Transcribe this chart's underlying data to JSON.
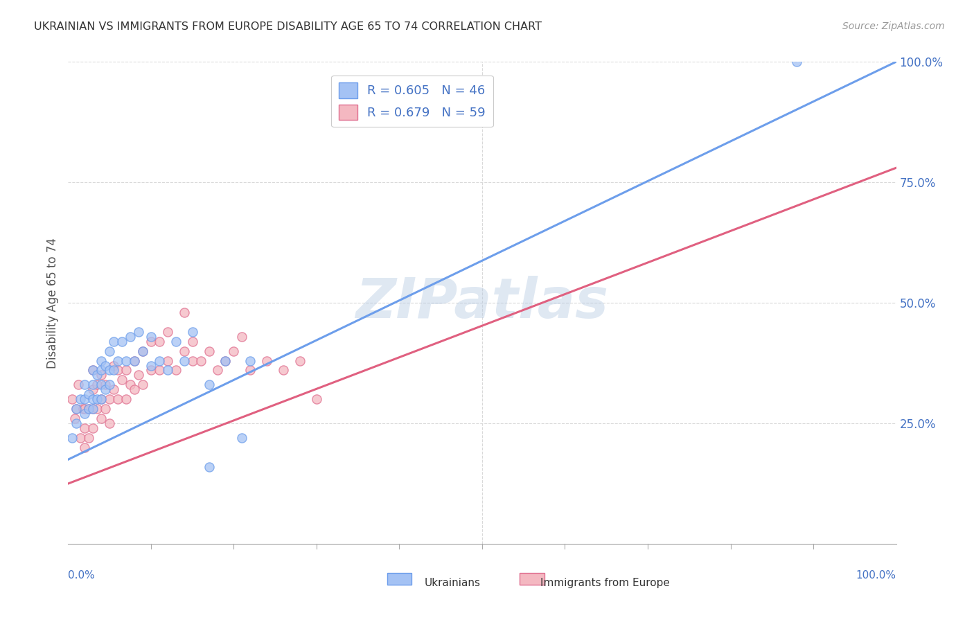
{
  "title": "UKRAINIAN VS IMMIGRANTS FROM EUROPE DISABILITY AGE 65 TO 74 CORRELATION CHART",
  "source": "Source: ZipAtlas.com",
  "ylabel": "Disability Age 65 to 74",
  "xmin": 0.0,
  "xmax": 1.0,
  "ymin": 0.0,
  "ymax": 1.0,
  "watermark": "ZIPatlas",
  "legend_blue_r": "R = 0.605",
  "legend_blue_n": "N = 46",
  "legend_pink_r": "R = 0.679",
  "legend_pink_n": "N = 59",
  "blue_color": "#a4c2f4",
  "pink_color": "#f4b8c1",
  "blue_edge_color": "#6d9eeb",
  "pink_edge_color": "#e07090",
  "blue_line_color": "#6d9eeb",
  "pink_line_color": "#e06080",
  "title_color": "#333333",
  "axis_label_color": "#555555",
  "tick_color": "#4472c4",
  "source_color": "#999999",
  "grid_color": "#d9d9d9",
  "blue_scatter_x": [
    0.005,
    0.01,
    0.01,
    0.015,
    0.02,
    0.02,
    0.02,
    0.025,
    0.025,
    0.03,
    0.03,
    0.03,
    0.03,
    0.035,
    0.035,
    0.04,
    0.04,
    0.04,
    0.04,
    0.045,
    0.045,
    0.05,
    0.05,
    0.05,
    0.055,
    0.055,
    0.06,
    0.065,
    0.07,
    0.075,
    0.08,
    0.085,
    0.09,
    0.1,
    0.1,
    0.11,
    0.12,
    0.13,
    0.14,
    0.15,
    0.17,
    0.19,
    0.22,
    0.17,
    0.21,
    0.88
  ],
  "blue_scatter_y": [
    0.22,
    0.25,
    0.28,
    0.3,
    0.27,
    0.3,
    0.33,
    0.28,
    0.31,
    0.28,
    0.3,
    0.33,
    0.36,
    0.3,
    0.35,
    0.3,
    0.33,
    0.36,
    0.38,
    0.32,
    0.37,
    0.33,
    0.36,
    0.4,
    0.36,
    0.42,
    0.38,
    0.42,
    0.38,
    0.43,
    0.38,
    0.44,
    0.4,
    0.37,
    0.43,
    0.38,
    0.36,
    0.42,
    0.38,
    0.44,
    0.33,
    0.38,
    0.38,
    0.16,
    0.22,
    1.0
  ],
  "pink_scatter_x": [
    0.005,
    0.008,
    0.01,
    0.012,
    0.015,
    0.018,
    0.02,
    0.02,
    0.02,
    0.025,
    0.025,
    0.03,
    0.03,
    0.03,
    0.03,
    0.035,
    0.035,
    0.04,
    0.04,
    0.04,
    0.045,
    0.045,
    0.05,
    0.05,
    0.055,
    0.055,
    0.06,
    0.06,
    0.065,
    0.07,
    0.07,
    0.075,
    0.08,
    0.08,
    0.085,
    0.09,
    0.09,
    0.1,
    0.1,
    0.11,
    0.11,
    0.12,
    0.12,
    0.13,
    0.14,
    0.14,
    0.15,
    0.15,
    0.16,
    0.17,
    0.18,
    0.19,
    0.2,
    0.21,
    0.22,
    0.24,
    0.26,
    0.28,
    0.3
  ],
  "pink_scatter_y": [
    0.3,
    0.26,
    0.28,
    0.33,
    0.22,
    0.28,
    0.2,
    0.24,
    0.28,
    0.22,
    0.28,
    0.24,
    0.28,
    0.32,
    0.36,
    0.28,
    0.33,
    0.26,
    0.3,
    0.35,
    0.28,
    0.33,
    0.25,
    0.3,
    0.32,
    0.37,
    0.3,
    0.36,
    0.34,
    0.3,
    0.36,
    0.33,
    0.32,
    0.38,
    0.35,
    0.33,
    0.4,
    0.36,
    0.42,
    0.36,
    0.42,
    0.38,
    0.44,
    0.36,
    0.4,
    0.48,
    0.38,
    0.42,
    0.38,
    0.4,
    0.36,
    0.38,
    0.4,
    0.43,
    0.36,
    0.38,
    0.36,
    0.38,
    0.3
  ],
  "blue_line_x": [
    0.0,
    1.0
  ],
  "blue_line_y": [
    0.175,
    1.0
  ],
  "pink_line_x": [
    0.0,
    1.0
  ],
  "pink_line_y": [
    0.125,
    0.78
  ],
  "ytick_labels": [
    "25.0%",
    "50.0%",
    "75.0%",
    "100.0%"
  ],
  "ytick_positions": [
    0.25,
    0.5,
    0.75,
    1.0
  ],
  "legend_label_blue": "Ukrainians",
  "legend_label_pink": "Immigrants from Europe"
}
